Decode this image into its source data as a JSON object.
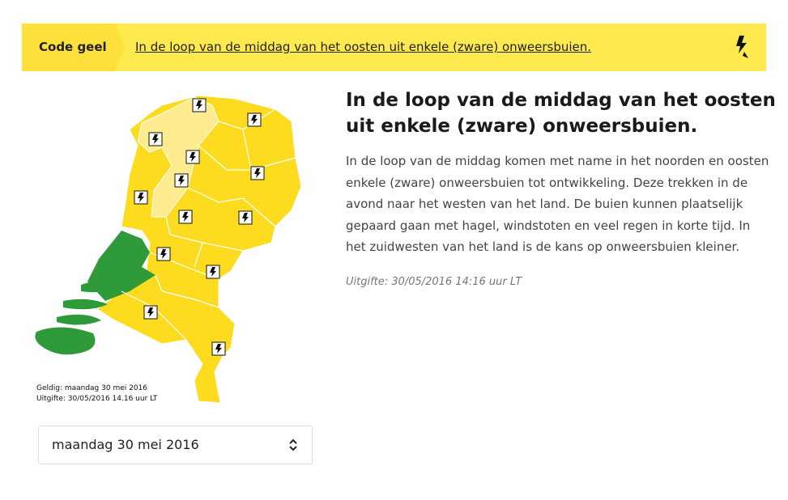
{
  "banner": {
    "level": "Code geel",
    "link": "In de loop van de middag van het oosten uit enkele (zware) onweersbuien."
  },
  "map": {
    "valid": "Geldig: maandag 30 mei 2016",
    "issued": "Uitgifte: 30/05/2016 14.16 uur LT"
  },
  "article": {
    "title": "In de loop van de middag van het oosten uit enkele (zware) onweersbuien.",
    "body": "In de loop van de middag komen met name in het noorden en oosten enkele (zware) onweersbuien tot ontwikkeling. Deze trekken in de avond naar het westen van het land. De buien kunnen plaatselijk gepaard gaan met hagel, windstoten en veel regen in korte tijd. In het zuidwesten van het land is de kans op onweersbuien kleiner.",
    "issued": "Uitgifte: 30/05/2016 14:16 uur LT"
  },
  "date_select": {
    "value": "maandag 30 mei 2016"
  }
}
